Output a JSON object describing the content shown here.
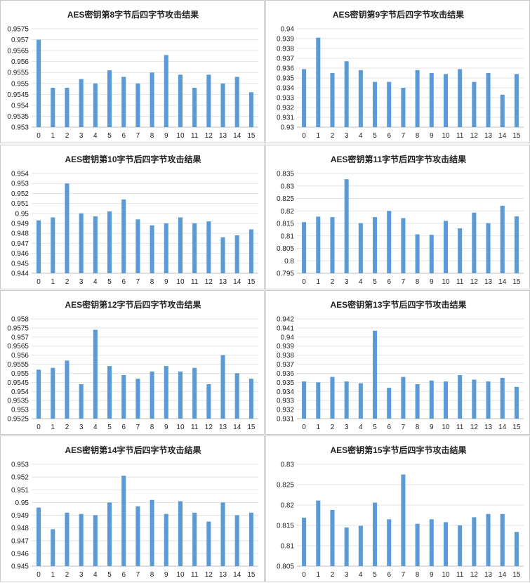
{
  "colors": {
    "bar": "#5b9bd5",
    "grid": "#e3e3e3",
    "text": "#222222",
    "border": "#c9c9c9"
  },
  "chart_data": [
    {
      "type": "bar",
      "title": "AES密钥第8字节后四字节攻击结果",
      "categories": [
        "0",
        "1",
        "2",
        "3",
        "4",
        "5",
        "6",
        "7",
        "8",
        "9",
        "10",
        "11",
        "12",
        "13",
        "14",
        "15"
      ],
      "values": [
        0.957,
        0.9548,
        0.9548,
        0.9552,
        0.955,
        0.9556,
        0.9553,
        0.955,
        0.9555,
        0.9563,
        0.9554,
        0.9548,
        0.9554,
        0.955,
        0.9553,
        0.9546
      ],
      "ylim": [
        0.953,
        0.9575
      ],
      "yticks": [
        "0.953",
        "0.9535",
        "0.954",
        "0.9545",
        "0.955",
        "0.9555",
        "0.956",
        "0.9565",
        "0.957",
        "0.9575"
      ],
      "grid": true,
      "legend": "none"
    },
    {
      "type": "bar",
      "title": "AES密钥第9字节后四字节攻击结果",
      "categories": [
        "0",
        "1",
        "2",
        "3",
        "4",
        "5",
        "6",
        "7",
        "8",
        "9",
        "10",
        "11",
        "12",
        "13",
        "14",
        "15"
      ],
      "values": [
        0.9359,
        0.9391,
        0.9355,
        0.9367,
        0.9358,
        0.9346,
        0.9346,
        0.934,
        0.9358,
        0.9355,
        0.9354,
        0.9359,
        0.9346,
        0.9355,
        0.9333,
        0.9354
      ],
      "ylim": [
        0.93,
        0.94
      ],
      "yticks": [
        "0.93",
        "0.931",
        "0.932",
        "0.933",
        "0.934",
        "0.935",
        "0.936",
        "0.937",
        "0.938",
        "0.939",
        "0.94"
      ],
      "grid": true,
      "legend": "none"
    },
    {
      "type": "bar",
      "title": "AES密钥第10字节后四字节攻击结果",
      "categories": [
        "0",
        "1",
        "2",
        "3",
        "4",
        "5",
        "6",
        "7",
        "8",
        "9",
        "10",
        "11",
        "12",
        "13",
        "14",
        "15"
      ],
      "values": [
        0.9493,
        0.9496,
        0.953,
        0.95,
        0.9497,
        0.9502,
        0.9514,
        0.9494,
        0.9488,
        0.949,
        0.9496,
        0.949,
        0.9492,
        0.9476,
        0.9478,
        0.9484
      ],
      "ylim": [
        0.944,
        0.954
      ],
      "yticks": [
        "0.944",
        "0.945",
        "0.946",
        "0.947",
        "0.948",
        "0.949",
        "0.95",
        "0.951",
        "0.952",
        "0.953",
        "0.954"
      ],
      "grid": true,
      "legend": "none"
    },
    {
      "type": "bar",
      "title": "AES密钥第11字节后四字节攻击结果",
      "categories": [
        "0",
        "1",
        "2",
        "3",
        "4",
        "5",
        "6",
        "7",
        "8",
        "9",
        "10",
        "11",
        "12",
        "13",
        "14",
        "15"
      ],
      "values": [
        0.8155,
        0.8177,
        0.8175,
        0.8327,
        0.8151,
        0.8175,
        0.82,
        0.8171,
        0.8106,
        0.8104,
        0.816,
        0.813,
        0.8193,
        0.8151,
        0.8221,
        0.8178
      ],
      "ylim": [
        0.795,
        0.835
      ],
      "yticks": [
        "0.795",
        "0.8",
        "0.805",
        "0.81",
        "0.815",
        "0.82",
        "0.825",
        "0.83",
        "0.835"
      ],
      "grid": true,
      "legend": "none"
    },
    {
      "type": "bar",
      "title": "AES密钥第12字节后四字节攻击结果",
      "categories": [
        "0",
        "1",
        "2",
        "3",
        "4",
        "5",
        "6",
        "7",
        "8",
        "9",
        "10",
        "11",
        "12",
        "13",
        "14",
        "15"
      ],
      "values": [
        0.9552,
        0.9553,
        0.9557,
        0.9544,
        0.9574,
        0.9554,
        0.9549,
        0.9547,
        0.9551,
        0.9554,
        0.9551,
        0.9553,
        0.9544,
        0.956,
        0.955,
        0.9547
      ],
      "ylim": [
        0.9525,
        0.958
      ],
      "yticks": [
        "0.9525",
        "0.953",
        "0.9535",
        "0.954",
        "0.9545",
        "0.955",
        "0.9555",
        "0.956",
        "0.9565",
        "0.957",
        "0.9575",
        "0.958"
      ],
      "grid": true,
      "legend": "none"
    },
    {
      "type": "bar",
      "title": "AES密钥第13字节后四字节攻击结果",
      "categories": [
        "0",
        "1",
        "2",
        "3",
        "4",
        "5",
        "6",
        "7",
        "8",
        "9",
        "10",
        "11",
        "12",
        "13",
        "14",
        "15"
      ],
      "values": [
        0.9351,
        0.935,
        0.9356,
        0.9351,
        0.9349,
        0.9407,
        0.9344,
        0.9356,
        0.9348,
        0.9352,
        0.9351,
        0.9358,
        0.9353,
        0.9351,
        0.9355,
        0.9345
      ],
      "ylim": [
        0.931,
        0.942
      ],
      "yticks": [
        "0.931",
        "0.932",
        "0.933",
        "0.934",
        "0.935",
        "0.936",
        "0.937",
        "0.938",
        "0.939",
        "0.94",
        "0.941",
        "0.942"
      ],
      "grid": true,
      "legend": "none"
    },
    {
      "type": "bar",
      "title": "AES密钥第14字节后四字节攻击结果",
      "categories": [
        "0",
        "1",
        "2",
        "3",
        "4",
        "5",
        "6",
        "7",
        "8",
        "9",
        "10",
        "11",
        "12",
        "13",
        "14",
        "15"
      ],
      "values": [
        0.9496,
        0.9479,
        0.9492,
        0.9491,
        0.949,
        0.95,
        0.9521,
        0.9497,
        0.9502,
        0.9491,
        0.9501,
        0.9492,
        0.9485,
        0.95,
        0.949,
        0.9492
      ],
      "ylim": [
        0.945,
        0.953
      ],
      "yticks": [
        "0.945",
        "0.946",
        "0.947",
        "0.948",
        "0.949",
        "0.95",
        "0.951",
        "0.952",
        "0.953"
      ],
      "grid": true,
      "legend": "none"
    },
    {
      "type": "bar",
      "title": "AES密钥第15字节后四字节攻击结果",
      "categories": [
        "0",
        "1",
        "2",
        "3",
        "4",
        "5",
        "6",
        "7",
        "8",
        "9",
        "10",
        "11",
        "12",
        "13",
        "14",
        "15"
      ],
      "values": [
        0.8169,
        0.8211,
        0.8188,
        0.8145,
        0.8149,
        0.8206,
        0.8165,
        0.8275,
        0.8154,
        0.8165,
        0.8158,
        0.815,
        0.817,
        0.8178,
        0.8178,
        0.8134
      ],
      "ylim": [
        0.805,
        0.83
      ],
      "yticks": [
        "0.805",
        "0.81",
        "0.815",
        "0.82",
        "0.825",
        "0.83"
      ],
      "grid": true,
      "legend": "none"
    }
  ]
}
